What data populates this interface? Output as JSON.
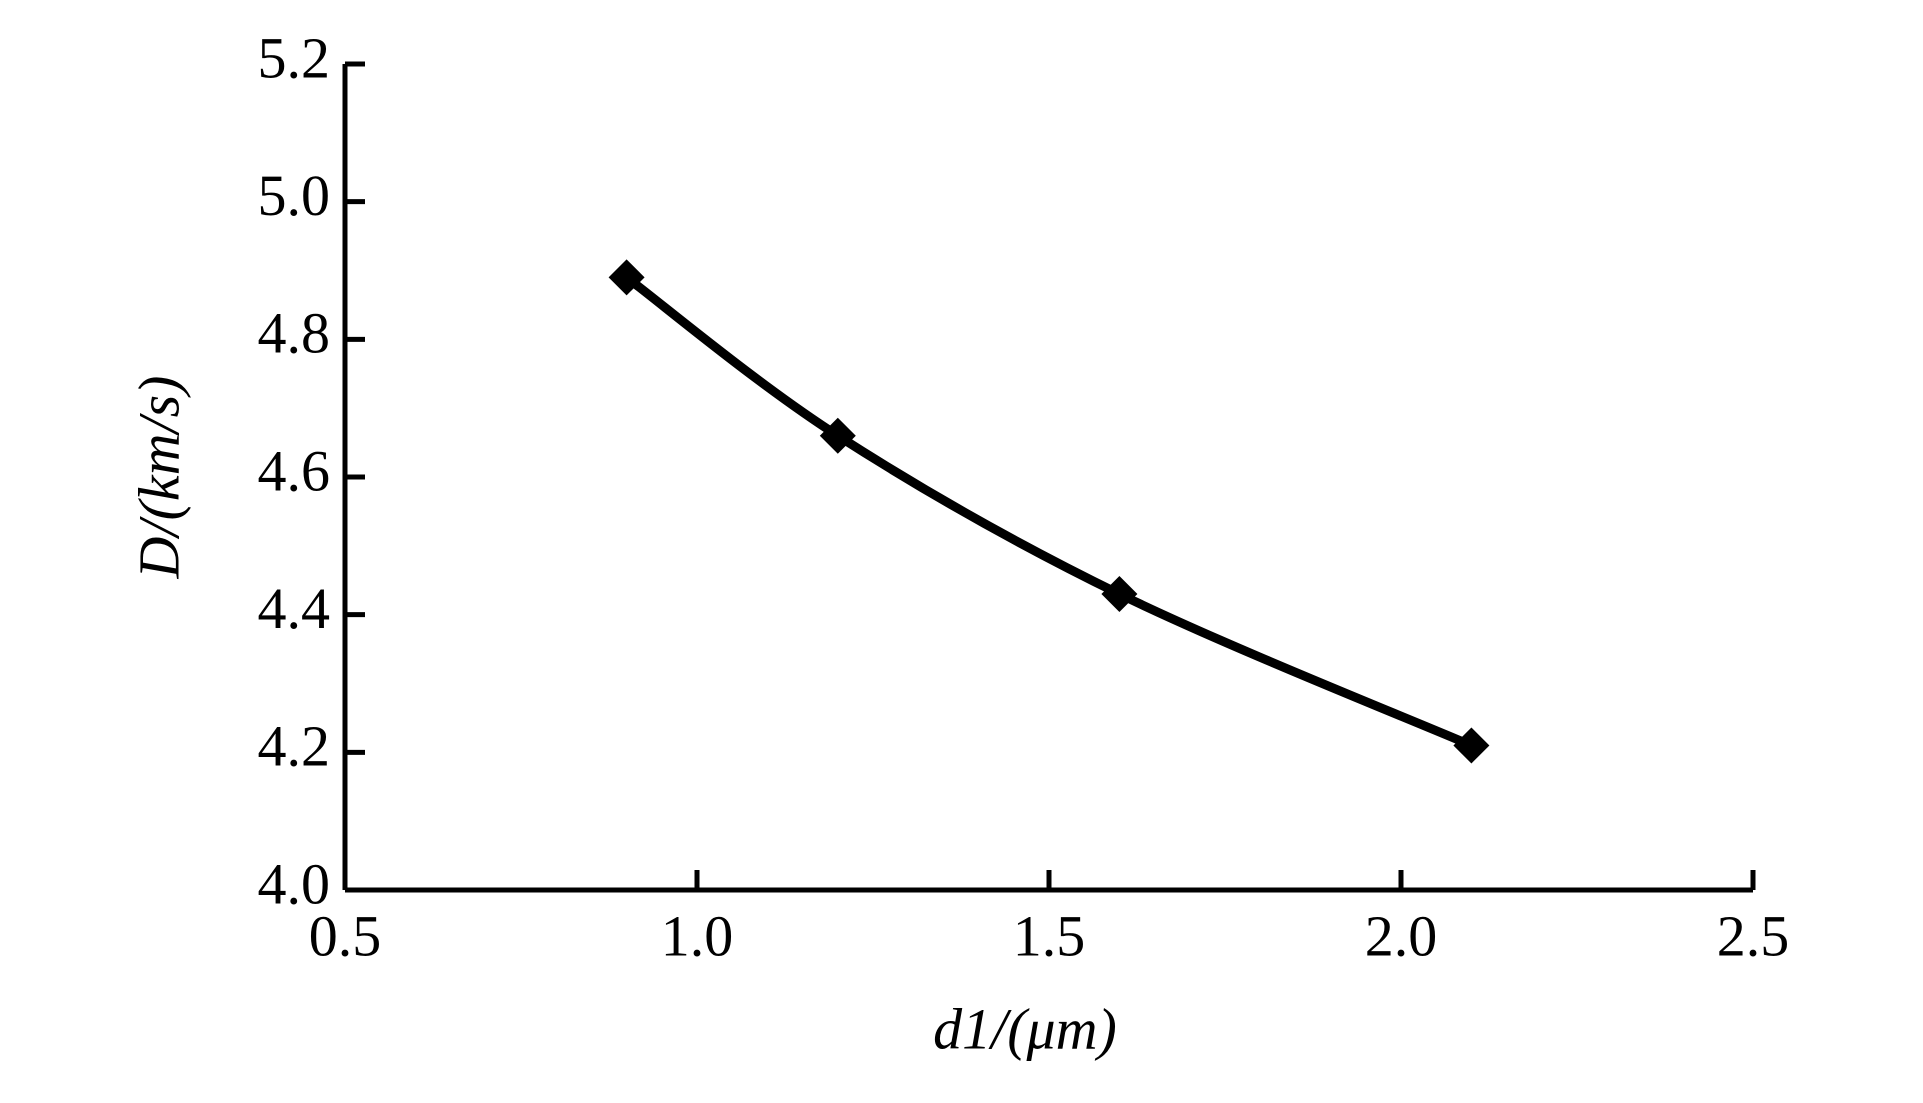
{
  "chart_data": {
    "type": "line",
    "x_label": "d1/(μm)",
    "y_label": "D/(km/s)",
    "x": [
      0.9,
      1.2,
      1.6,
      2.1
    ],
    "series": [
      {
        "name": "D",
        "color": "#000000",
        "values": [
          4.89,
          4.66,
          4.43,
          4.21
        ]
      }
    ],
    "xlim": [
      0.5,
      2.5
    ],
    "xticks": [
      {
        "value": 0.5,
        "label": "0.5"
      },
      {
        "value": 1.0,
        "label": "1.0"
      },
      {
        "value": 1.5,
        "label": "1.5"
      },
      {
        "value": 2.0,
        "label": "2.0"
      },
      {
        "value": 2.5,
        "label": "2.5"
      }
    ],
    "ylim": [
      4.0,
      5.2
    ],
    "yticks": [
      {
        "value": 4.0,
        "label": "4.0"
      },
      4.2,
      4.4,
      4.6,
      4.8,
      {
        "value": 5.0,
        "label": "5.0"
      },
      5.2
    ],
    "grid": false
  }
}
